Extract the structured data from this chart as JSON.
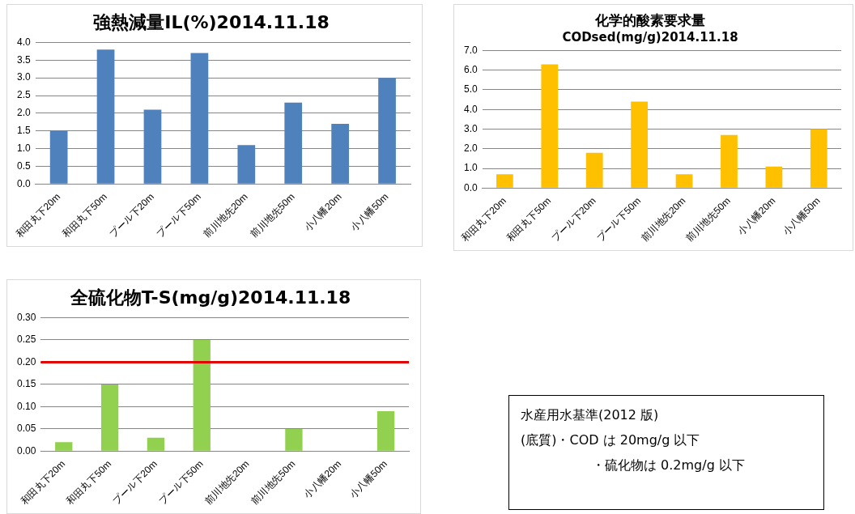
{
  "chart_data": [
    {
      "type": "bar",
      "title": "強熱減量IL(%)2014.11.18",
      "categories": [
        "和田丸下20m",
        "和田丸下50m",
        "プール下20m",
        "プール下50m",
        "前川地先20m",
        "前川地先50m",
        "小八幡20m",
        "小八幡50m"
      ],
      "values": [
        1.5,
        3.8,
        2.1,
        3.7,
        1.1,
        2.3,
        1.7,
        3.0
      ],
      "color": "#4f81bd",
      "ylim": [
        0,
        4
      ],
      "yticks": [
        {
          "value": 0,
          "label": "0.0"
        },
        {
          "value": 0.5,
          "label": "0.5"
        },
        {
          "value": 1,
          "label": "1.0"
        },
        {
          "value": 1.5,
          "label": "1.5"
        },
        {
          "value": 2,
          "label": "2.0"
        },
        {
          "value": 2.5,
          "label": "2.5"
        },
        {
          "value": 3,
          "label": "3.0"
        },
        {
          "value": 3.5,
          "label": "3.5"
        },
        {
          "value": 4,
          "label": "4.0"
        }
      ],
      "grid": "y",
      "legend": false
    },
    {
      "type": "bar",
      "title": "化学的酸素要求量",
      "subtitle": "CODsed(mg/g)2014.11.18",
      "categories": [
        "和田丸下20m",
        "和田丸下50m",
        "プール下20m",
        "プール下50m",
        "前川地先20m",
        "前川地先50m",
        "小八幡20m",
        "小八幡50m"
      ],
      "values": [
        0.7,
        6.3,
        1.8,
        4.4,
        0.7,
        2.7,
        1.1,
        3.0
      ],
      "color": "#ffc000",
      "ylim": [
        0,
        7
      ],
      "yticks": [
        {
          "value": 0,
          "label": "0.0"
        },
        {
          "value": 1,
          "label": "1.0"
        },
        {
          "value": 2,
          "label": "2.0"
        },
        {
          "value": 3,
          "label": "3.0"
        },
        {
          "value": 4,
          "label": "4.0"
        },
        {
          "value": 5,
          "label": "5.0"
        },
        {
          "value": 6,
          "label": "6.0"
        },
        {
          "value": 7,
          "label": "7.0"
        }
      ],
      "grid": "y",
      "legend": false
    },
    {
      "type": "bar",
      "title": "全硫化物T-S(mg/g)2014.11.18",
      "categories": [
        "和田丸下20m",
        "和田丸下50m",
        "プール下20m",
        "プール下50m",
        "前川地先20m",
        "前川地先50m",
        "小八幡20m",
        "小八幡50m"
      ],
      "values": [
        0.02,
        0.15,
        0.03,
        0.25,
        0,
        0.05,
        0,
        0.09
      ],
      "color": "#92d050",
      "ylim": [
        0,
        0.3
      ],
      "yticks": [
        {
          "value": 0,
          "label": "0.00"
        },
        {
          "value": 0.05,
          "label": "0.05"
        },
        {
          "value": 0.1,
          "label": "0.10"
        },
        {
          "value": 0.15,
          "label": "0.15"
        },
        {
          "value": 0.2,
          "label": "0.20"
        },
        {
          "value": 0.25,
          "label": "0.25"
        },
        {
          "value": 0.3,
          "label": "0.30"
        }
      ],
      "grid": "y",
      "legend": false,
      "ref_lines": [
        {
          "axis": "y",
          "value": 0.2,
          "color": "#e00000"
        }
      ]
    },
    {
      "type": "other",
      "annotations": [
        "水産用水基準(2012 版)",
        "(底質)・COD は 20mg/g 以下",
        "・硫化物は 0.2mg/g 以下"
      ]
    }
  ]
}
